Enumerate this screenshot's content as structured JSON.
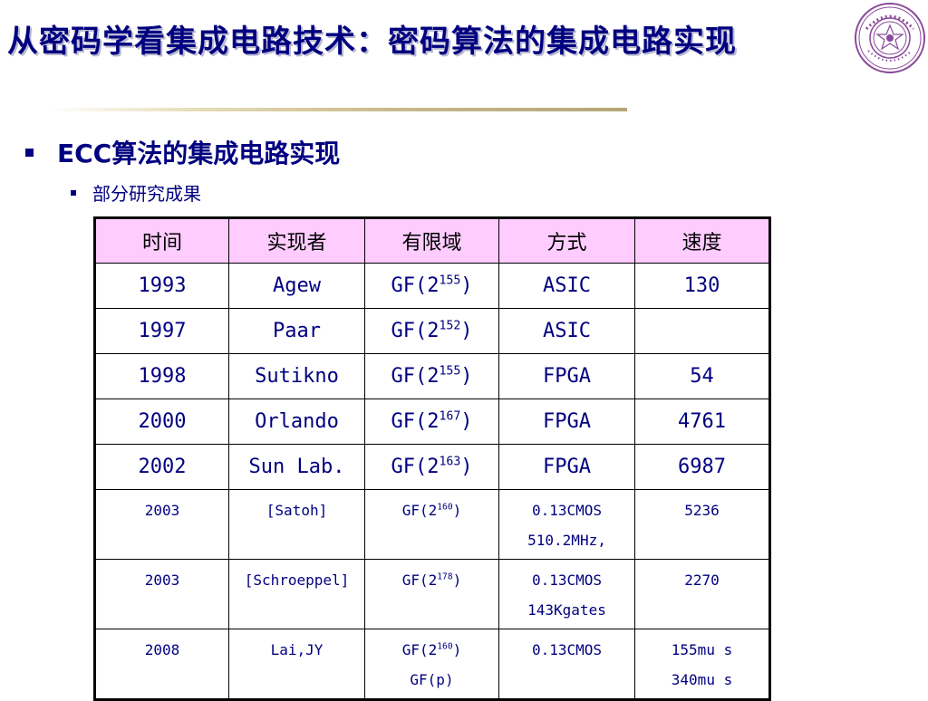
{
  "slide": {
    "title": "从密码学看集成电路技术：密码算法的集成电路实现",
    "bullet1": "ECC算法的集成电路实现",
    "bullet2": "部分研究成果",
    "seal_text": "清华大学 TSINGHUA UNIVERSITY 1911"
  },
  "table": {
    "headers": [
      "时间",
      "实现者",
      "有限域",
      "方式",
      "速度"
    ],
    "rows": [
      {
        "year": "1993",
        "author": "Agew",
        "field": {
          "base": "GF(2",
          "exp": "155",
          "close": ")"
        },
        "method": [
          "ASIC"
        ],
        "speed": [
          "130"
        ],
        "size": "big"
      },
      {
        "year": "1997",
        "author": "Paar",
        "field": {
          "base": "GF(2",
          "exp": "152",
          "close": ")"
        },
        "method": [
          "ASIC"
        ],
        "speed": [
          ""
        ],
        "size": "big"
      },
      {
        "year": "1998",
        "author": "Sutikno",
        "field": {
          "base": "GF(2",
          "exp": "155",
          "close": ")"
        },
        "method": [
          "FPGA"
        ],
        "speed": [
          "54"
        ],
        "size": "big"
      },
      {
        "year": "2000",
        "author": "Orlando",
        "field": {
          "base": "GF(2",
          "exp": "167",
          "close": ")"
        },
        "method": [
          "FPGA"
        ],
        "speed": [
          "4761"
        ],
        "size": "big"
      },
      {
        "year": "2002",
        "author": "Sun Lab.",
        "field": {
          "base": "GF(2",
          "exp": "163",
          "close": ")"
        },
        "method": [
          "FPGA"
        ],
        "speed": [
          "6987"
        ],
        "size": "big"
      },
      {
        "year": "2003",
        "author": "[Satoh]",
        "field": {
          "base": "GF(2",
          "exp": "160",
          "close": ")"
        },
        "method": [
          "0.13CMOS",
          "510.2MHz,"
        ],
        "speed": [
          "5236"
        ],
        "size": "small"
      },
      {
        "year": "2003",
        "author": "[Schroeppel]",
        "field": {
          "base": "GF(2",
          "exp": "178",
          "close": ")"
        },
        "method": [
          "0.13CMOS",
          "143Kgates"
        ],
        "speed": [
          "2270"
        ],
        "size": "small"
      },
      {
        "year": "2008",
        "author": "Lai,JY",
        "field": {
          "base": "GF(2",
          "exp": "160",
          "close": ")",
          "extra": "GF(p)"
        },
        "method": [
          "0.13CMOS"
        ],
        "speed": [
          "155mu s",
          "340mu s"
        ],
        "size": "small"
      }
    ]
  },
  "colors": {
    "title": "#000080",
    "header_bg": "#ffccff",
    "text": "#000080",
    "seal": "#8a4a9a"
  }
}
